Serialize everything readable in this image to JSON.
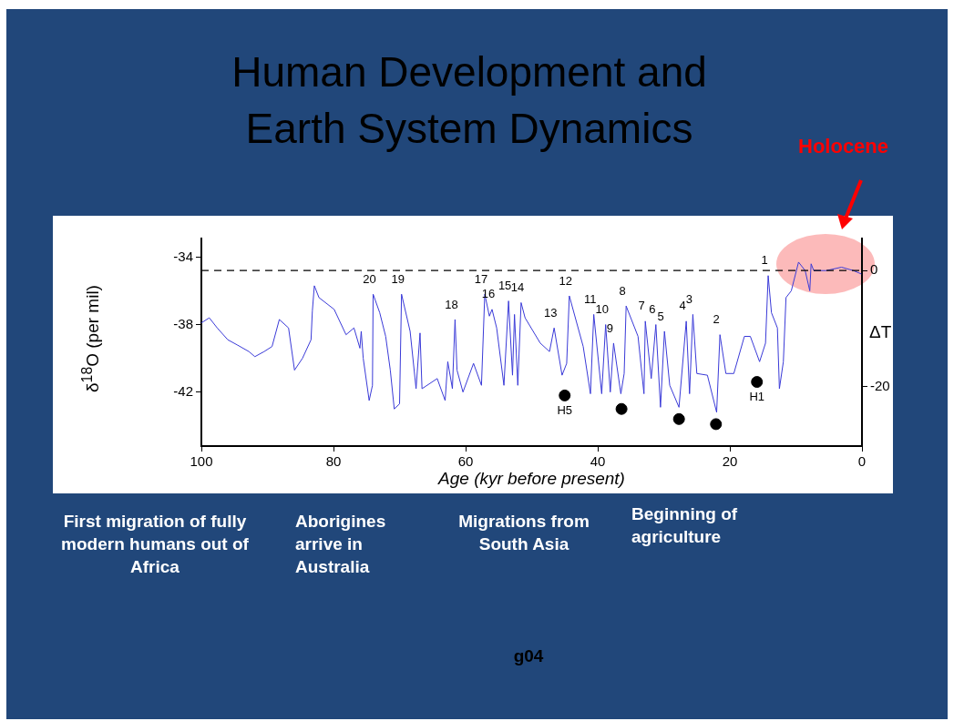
{
  "chart_data": {
    "type": "line",
    "title": "Human Development and Earth System Dynamics",
    "xlabel": "Age (kyr before present)",
    "ylabel": "δ$^{18}$O (per mil)",
    "y2label": "ΔT",
    "xlim": [
      100,
      0
    ],
    "xticks": [
      100,
      80,
      60,
      40,
      20,
      0
    ],
    "ylim": [
      -45.2,
      -32.9
    ],
    "yticks": [
      -34,
      -38,
      -42
    ],
    "y2lim": [
      -30.2,
      5.5
    ],
    "y2ticks": [
      0,
      -20
    ],
    "grid": false,
    "legend": false,
    "marker": "none",
    "line_style": "solid",
    "series": [
      {
        "type": "line",
        "color": "#3a3ad8",
        "x": [
          100,
          98.8,
          97.6,
          96.0,
          94.6,
          92.8,
          91.9,
          90.5,
          89.3,
          88.2,
          86.8,
          85.9,
          84.7,
          83.4,
          83.2,
          82.9,
          82.2,
          79.9,
          78.1,
          76.9,
          76.0,
          75.8,
          75.5,
          74.6,
          74.1,
          74.0,
          73.0,
          72.1,
          71.4,
          70.8,
          70.0,
          69.7,
          68.4,
          67.5,
          66.9,
          66.6,
          64.3,
          63.1,
          62.7,
          62.0,
          61.6,
          61.3,
          60.4,
          58.8,
          57.6,
          57.1,
          56.4,
          56.0,
          55.3,
          54.2,
          53.5,
          52.9,
          52.6,
          52.1,
          51.6,
          51.0,
          48.7,
          47.3,
          46.6,
          45.4,
          44.7,
          44.3,
          42.2,
          41.1,
          40.6,
          39.4,
          38.8,
          38.1,
          37.6,
          36.5,
          36.0,
          35.7,
          33.9,
          33.0,
          32.8,
          31.9,
          31.2,
          30.5,
          29.9,
          29.1,
          27.7,
          26.6,
          26.1,
          25.6,
          25.0,
          23.4,
          22.0,
          21.5,
          20.6,
          19.4,
          17.8,
          16.9,
          15.5,
          14.6,
          14.2,
          13.7,
          12.8,
          12.5,
          11.9,
          11.5,
          10.7,
          9.6,
          8.6,
          7.9,
          7.7,
          7.3,
          5.4,
          3.1,
          1.3,
          0.1
        ],
        "values": [
          -37.9,
          -37.6,
          -38.2,
          -38.9,
          -39.2,
          -39.6,
          -39.9,
          -39.6,
          -39.3,
          -37.7,
          -38.2,
          -40.7,
          -40.0,
          -38.9,
          -37.2,
          -35.7,
          -36.4,
          -37.1,
          -38.6,
          -38.2,
          -39.4,
          -38.4,
          -40.0,
          -42.5,
          -41.6,
          -36.2,
          -37.3,
          -38.7,
          -40.7,
          -43.0,
          -42.7,
          -36.2,
          -38.4,
          -41.8,
          -38.5,
          -41.8,
          -41.2,
          -42.5,
          -40.2,
          -41.8,
          -37.7,
          -40.7,
          -42.0,
          -40.3,
          -41.6,
          -36.2,
          -37.5,
          -37.1,
          -38.2,
          -41.6,
          -36.6,
          -41.0,
          -37.4,
          -41.6,
          -36.7,
          -37.6,
          -39.1,
          -39.6,
          -38.2,
          -41.0,
          -40.3,
          -36.3,
          -39.3,
          -42.1,
          -37.4,
          -42.1,
          -38.0,
          -42.0,
          -39.1,
          -42.1,
          -40.9,
          -36.9,
          -38.7,
          -42.1,
          -37.8,
          -41.2,
          -38.0,
          -42.9,
          -38.4,
          -41.6,
          -42.9,
          -37.8,
          -42.1,
          -37.4,
          -40.9,
          -41.0,
          -43.2,
          -38.6,
          -40.9,
          -40.9,
          -38.7,
          -38.7,
          -40.2,
          -39.1,
          -35.1,
          -37.3,
          -38.2,
          -41.8,
          -40.2,
          -36.4,
          -36.0,
          -34.3,
          -34.8,
          -36.0,
          -34.4,
          -34.8,
          -34.8,
          -34.6,
          -34.8,
          -35.0
        ]
      },
      {
        "type": "scatter",
        "color": "#000000",
        "marker": "circle",
        "x": [
          45.0,
          36.4,
          27.7,
          22.1,
          15.9
        ],
        "values": [
          -42.2,
          -43.0,
          -43.6,
          -43.9,
          -41.4
        ]
      }
    ],
    "ref_lines": [
      {
        "axis": "y",
        "value": -34.8,
        "color": "#000000",
        "line_style": "dashed"
      }
    ],
    "annotations": [
      {
        "text": "20",
        "x": 74.0,
        "y": -36.2
      },
      {
        "text": "19",
        "x": 69.7,
        "y": -36.2
      },
      {
        "text": "18",
        "x": 61.6,
        "y": -37.7
      },
      {
        "text": "17",
        "x": 57.1,
        "y": -36.2
      },
      {
        "text": "16",
        "x": 56.0,
        "y": -37.1
      },
      {
        "text": "15",
        "x": 53.5,
        "y": -36.6
      },
      {
        "text": "14",
        "x": 51.6,
        "y": -36.7
      },
      {
        "text": "13",
        "x": 46.6,
        "y": -38.2
      },
      {
        "text": "12",
        "x": 44.3,
        "y": -36.3
      },
      {
        "text": "11",
        "x": 40.6,
        "y": -37.4
      },
      {
        "text": "10",
        "x": 38.8,
        "y": -38.0
      },
      {
        "text": "9",
        "x": 37.6,
        "y": -39.1
      },
      {
        "text": "8",
        "x": 35.7,
        "y": -36.9
      },
      {
        "text": "7",
        "x": 32.8,
        "y": -37.8
      },
      {
        "text": "6",
        "x": 31.2,
        "y": -38.0
      },
      {
        "text": "5",
        "x": 29.9,
        "y": -38.4
      },
      {
        "text": "4",
        "x": 26.6,
        "y": -37.8
      },
      {
        "text": "3",
        "x": 25.6,
        "y": -37.4
      },
      {
        "text": "2",
        "x": 21.5,
        "y": -38.6
      },
      {
        "text": "1",
        "x": 14.2,
        "y": -35.1
      },
      {
        "text": "H5",
        "x": 45.0,
        "y": -42.2
      },
      {
        "text": "H1",
        "x": 15.9,
        "y": -41.4
      },
      "Holocene",
      "First migration of fully modern humans out of Africa",
      "Aborigines arrive in Australia",
      "Migrations from South Asia",
      "Beginning of agriculture",
      "g04"
    ]
  }
}
